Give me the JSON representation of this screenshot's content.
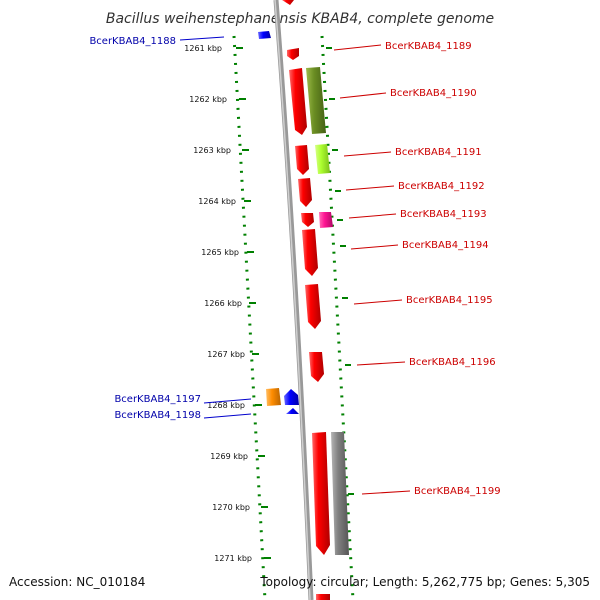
{
  "map": {
    "title": "Bacillus weihenstephanensis KBAB4, complete genome",
    "accession_text": "Accession: NC_010184",
    "summary_text": "Topology: circular; Length: 5,262,775 bp; Genes: 5,305"
  },
  "scale": {
    "ticks": [
      {
        "label": "1261 kbp"
      },
      {
        "label": "1262 kbp"
      },
      {
        "label": "1263 kbp"
      },
      {
        "label": "1264 kbp"
      },
      {
        "label": "1265 kbp"
      },
      {
        "label": "1266 kbp"
      },
      {
        "label": "1267 kbp"
      },
      {
        "label": "1268 kbp"
      },
      {
        "label": "1269 kbp"
      },
      {
        "label": "1270 kbp"
      },
      {
        "label": "1271 kbp"
      }
    ]
  },
  "genes": [
    {
      "name": "BcerKBAB4_1188",
      "strand": "reverse",
      "color": "#0000ff"
    },
    {
      "name": "BcerKBAB4_1189",
      "strand": "forward",
      "color": "#ff0000"
    },
    {
      "name": "BcerKBAB4_1190",
      "strand": "forward",
      "color": "#ff0000"
    },
    {
      "name": "BcerKBAB4_1191",
      "strand": "forward",
      "color": "#ff0000"
    },
    {
      "name": "BcerKBAB4_1192",
      "strand": "forward",
      "color": "#ff0000"
    },
    {
      "name": "BcerKBAB4_1193",
      "strand": "forward",
      "color": "#ff0000"
    },
    {
      "name": "BcerKBAB4_1194",
      "strand": "forward",
      "color": "#ff0000"
    },
    {
      "name": "BcerKBAB4_1195",
      "strand": "forward",
      "color": "#ff0000"
    },
    {
      "name": "BcerKBAB4_1196",
      "strand": "forward",
      "color": "#ff0000"
    },
    {
      "name": "BcerKBAB4_1197",
      "strand": "reverse",
      "color": "#0000ff"
    },
    {
      "name": "BcerKBAB4_1198",
      "strand": "reverse",
      "color": "#0000ff"
    },
    {
      "name": "BcerKBAB4_1199",
      "strand": "forward",
      "color": "#ff0000"
    }
  ],
  "colors": {
    "forward_cds": "#ff0000",
    "reverse_cds": "#0000ff",
    "cog_olive": "#6b8e23",
    "cog_lime": "#adff2f",
    "cog_magenta": "#ff1493",
    "cog_orange": "#ff8c00",
    "cog_gray": "#808080",
    "backbone": "#888888",
    "tick_dots": "#008000",
    "label_forward": "#cc0000",
    "label_reverse": "#0000aa"
  }
}
